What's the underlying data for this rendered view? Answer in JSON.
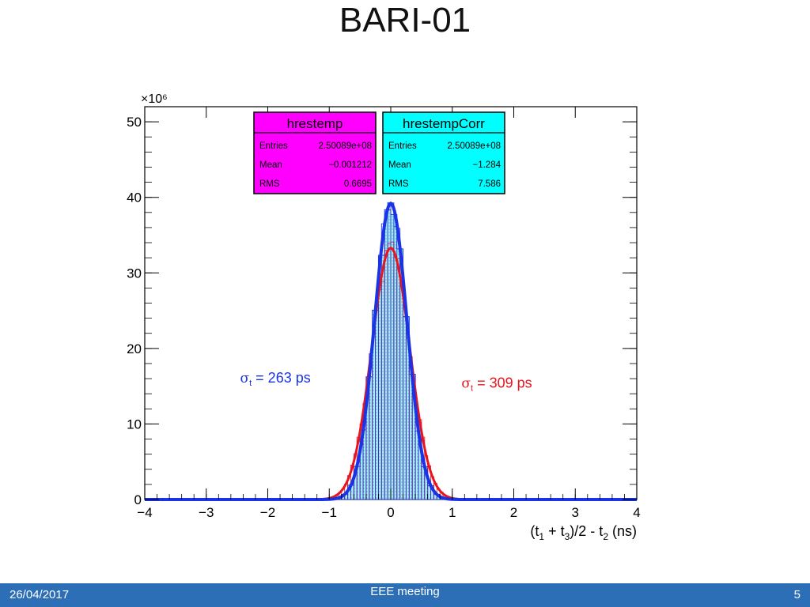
{
  "slide": {
    "title": "BARI-01",
    "footer_date": "26/04/2017",
    "footer_center": "EEE meeting",
    "page_number": "5"
  },
  "chart_data": {
    "type": "histogram",
    "y_multiplier_label": "×10⁶",
    "xlabel_parts": [
      "(t",
      "1",
      " + t",
      "3",
      ")/2 - t",
      "2",
      " (ns)"
    ],
    "xlim": [
      -4,
      4
    ],
    "ylim": [
      0,
      52
    ],
    "x_ticks": [
      -4,
      -3,
      -2,
      -1,
      0,
      1,
      2,
      3,
      4
    ],
    "x_tick_labels": [
      "−4",
      "−3",
      "−2",
      "−1",
      "0",
      "1",
      "2",
      "3",
      "4"
    ],
    "y_ticks": [
      0,
      10,
      20,
      30,
      40,
      50
    ],
    "y_tick_labels": [
      "0",
      "10",
      "20",
      "30",
      "40",
      "50"
    ],
    "series": [
      {
        "name": "hrestemp",
        "color": "#e8141e",
        "mean": 0.0,
        "sigma": 0.309,
        "peak": 33.3,
        "stats": {
          "title": "hrestemp",
          "bg": "#ff00ff",
          "rows": [
            [
              "Entries",
              "2.50089e+08"
            ],
            [
              "Mean",
              "−0.001212"
            ],
            [
              "RMS",
              "0.6695"
            ]
          ]
        }
      },
      {
        "name": "hrestempCorr",
        "color": "#1a33e6",
        "fill": "#a6ecf2",
        "mean": 0.0,
        "sigma": 0.263,
        "peak": 39.2,
        "stats": {
          "title": "hrestempCorr",
          "bg": "#00ffff",
          "rows": [
            [
              "Entries",
              "2.50089e+08"
            ],
            [
              "Mean",
              "−1.284"
            ],
            [
              "RMS",
              "7.586"
            ]
          ]
        }
      }
    ],
    "annotations": [
      {
        "symbol": "σ",
        "sub": "t",
        "text": " = 263 ps",
        "color": "#1a33e6",
        "x": -2.45,
        "y": 15.5
      },
      {
        "symbol": "σ",
        "sub": "t",
        "text": " = 309 ps",
        "color": "#e8141e",
        "x": 1.15,
        "y": 14.8
      }
    ]
  }
}
